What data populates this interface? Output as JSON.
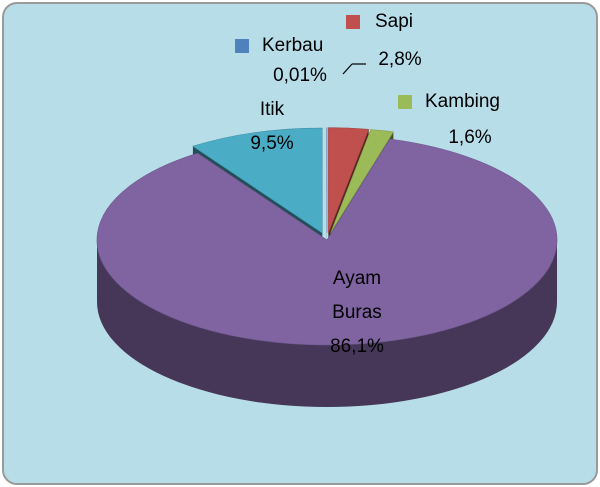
{
  "chart_data": {
    "type": "pie",
    "categories": [
      "Sapi",
      "Kambing",
      "Ayam Buras",
      "Itik",
      "Kerbau"
    ],
    "values": [
      2.8,
      1.6,
      86.1,
      9.5,
      0.01
    ],
    "value_labels": [
      "2,8%",
      "1,6%",
      "86,1%",
      "9,5%",
      "0,01%"
    ],
    "colors": [
      "#c0504d",
      "#9bbb59",
      "#8064a2",
      "#4bacc6",
      "#4f81bd"
    ]
  }
}
